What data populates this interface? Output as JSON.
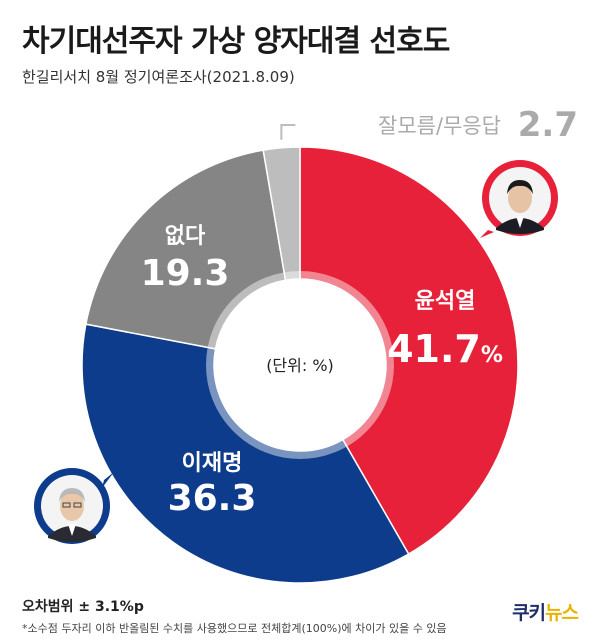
{
  "header": {
    "title": "차기대선주자 가상 양자대결 선호도",
    "subtitle": "한길리서치 8월 정기여론조사(2021.8.09)"
  },
  "chart_data": {
    "type": "pie",
    "center_label": "(단위: %)",
    "slices": [
      {
        "label": "윤석열",
        "value": 41.7,
        "display": "41.7",
        "unit": "%",
        "color": "#e8213a"
      },
      {
        "label": "이재명",
        "value": 36.3,
        "display": "36.3",
        "unit": "",
        "color": "#0e3c8c"
      },
      {
        "label": "없다",
        "value": 19.3,
        "display": "19.3",
        "unit": "",
        "color": "#858585"
      },
      {
        "label": "잘모름/무응답",
        "value": 2.7,
        "display": "2.7",
        "unit": "",
        "color": "#bdbdbd"
      }
    ]
  },
  "colors": {
    "red_bubble": "#e8213a",
    "blue_bubble": "#0e3c8c"
  },
  "footer": {
    "margin_of_error": "오차범위 ± 3.1%p",
    "note": "*소수점 두자리 이하 반올림된 수치를 사용했으므로 전체합계(100%)에 차이가 있을 수 있음",
    "logo_main": "쿠키",
    "logo_accent": "뉴스"
  }
}
